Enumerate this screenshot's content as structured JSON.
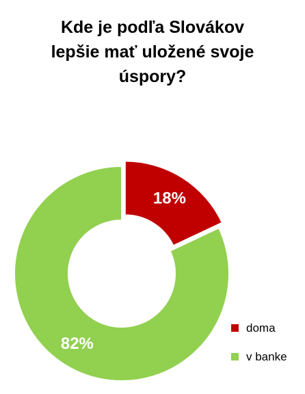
{
  "chart_data": {
    "type": "pie",
    "title_lines": [
      "Kde je podľa Slovákov",
      "lepšie mať uložené svoje",
      "úspory?"
    ],
    "slices": [
      {
        "name": "doma",
        "value": 18,
        "label": "18%",
        "color": "#c00000",
        "exploded": true
      },
      {
        "name": "v banke",
        "value": 82,
        "label": "82%",
        "color": "#92d050",
        "exploded": false
      }
    ],
    "donut": true,
    "legend_position": "bottom-right",
    "label_color": "#ffffff"
  }
}
